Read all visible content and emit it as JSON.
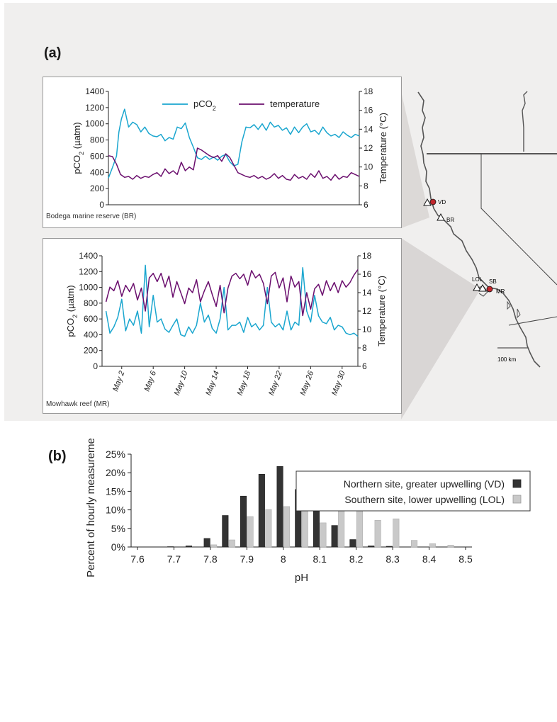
{
  "panel_a": {
    "label": "(a)",
    "legend": {
      "pco2": "pCO",
      "pco2_sub": "2",
      "temperature": "temperature"
    },
    "left_axis_label": "pCO",
    "left_axis_sub": "2",
    "left_axis_unit": " (µatm)",
    "right_axis_label": "Temperature (°C)",
    "colors": {
      "pco2": "#1aa6cf",
      "temperature": "#6b0f6e"
    },
    "map_scale_label": "100 km",
    "map_sites": [
      "VD",
      "BR",
      "LOL",
      "SB",
      "MR"
    ]
  },
  "chart_data": [
    {
      "type": "line",
      "title": "",
      "site_caption": "Bodega marine reserve (BR)",
      "ylabel": "pCO2 (µatm)",
      "y2label": "Temperature (°C)",
      "ylim": [
        0,
        1400
      ],
      "y2lim": [
        6,
        18
      ],
      "yticks": [
        "0",
        "200",
        "400",
        "600",
        "800",
        "1000",
        "1200",
        "1400"
      ],
      "y2ticks": [
        "6",
        "8",
        "10",
        "12",
        "14",
        "16",
        "18"
      ],
      "xlim_days": [
        1,
        32
      ],
      "series": [
        {
          "name": "pCO2",
          "axis": "left",
          "x": [
            1.0,
            1.5,
            2.0,
            2.3,
            2.6,
            3.0,
            3.5,
            4.0,
            4.5,
            5.0,
            5.5,
            6.0,
            6.5,
            7.0,
            7.5,
            8.0,
            8.5,
            9.0,
            9.5,
            10.0,
            10.5,
            11.0,
            11.5,
            12.0,
            12.5,
            13.0,
            13.5,
            14.0,
            14.5,
            15.0,
            15.5,
            16.0,
            16.5,
            17.0,
            17.5,
            18.0,
            18.5,
            19.0,
            19.5,
            20.0,
            20.5,
            21.0,
            21.5,
            22.0,
            22.5,
            23.0,
            23.5,
            24.0,
            24.5,
            25.0,
            25.5,
            26.0,
            26.5,
            27.0,
            27.5,
            28.0,
            28.5,
            29.0,
            29.5,
            30.0,
            30.5,
            31.0,
            31.5,
            32.0
          ],
          "y": [
            330,
            460,
            600,
            900,
            1060,
            1180,
            960,
            1020,
            990,
            900,
            960,
            880,
            850,
            840,
            870,
            790,
            830,
            810,
            960,
            940,
            1010,
            830,
            710,
            580,
            560,
            600,
            560,
            590,
            550,
            600,
            620,
            530,
            480,
            500,
            780,
            960,
            950,
            990,
            930,
            1000,
            920,
            1020,
            960,
            980,
            920,
            950,
            870,
            960,
            890,
            960,
            1000,
            900,
            920,
            870,
            960,
            890,
            850,
            870,
            830,
            900,
            860,
            830,
            870,
            850
          ]
        },
        {
          "name": "temperature",
          "axis": "right",
          "x": [
            1.0,
            1.5,
            2.0,
            2.5,
            3.0,
            3.5,
            4.0,
            4.5,
            5.0,
            5.5,
            6.0,
            6.5,
            7.0,
            7.5,
            8.0,
            8.5,
            9.0,
            9.5,
            10.0,
            10.5,
            11.0,
            11.5,
            12.0,
            12.5,
            13.0,
            13.5,
            14.0,
            14.5,
            15.0,
            15.5,
            16.0,
            16.5,
            17.0,
            17.5,
            18.0,
            18.5,
            19.0,
            19.5,
            20.0,
            20.5,
            21.0,
            21.5,
            22.0,
            22.5,
            23.0,
            23.5,
            24.0,
            24.5,
            25.0,
            25.5,
            26.0,
            26.5,
            27.0,
            27.5,
            28.0,
            28.5,
            29.0,
            29.5,
            30.0,
            30.5,
            31.0,
            31.5,
            32.0
          ],
          "y": [
            11.2,
            11.1,
            10.3,
            9.2,
            8.9,
            9.0,
            8.7,
            9.1,
            8.8,
            9.0,
            8.9,
            9.2,
            9.4,
            9.0,
            9.8,
            9.3,
            9.6,
            9.2,
            10.5,
            9.6,
            10.0,
            9.7,
            12.0,
            11.8,
            11.5,
            11.2,
            11.0,
            11.2,
            10.6,
            11.4,
            11.0,
            10.2,
            9.4,
            9.2,
            9.0,
            8.9,
            9.1,
            8.8,
            9.0,
            8.7,
            8.9,
            9.3,
            8.8,
            9.1,
            8.7,
            8.6,
            9.2,
            8.8,
            9.0,
            8.7,
            9.3,
            8.9,
            9.6,
            8.8,
            9.0,
            8.6,
            9.2,
            8.7,
            9.0,
            8.9,
            9.4,
            9.2,
            9.0
          ]
        }
      ]
    },
    {
      "type": "line",
      "title": "",
      "site_caption": "Mowhawk reef (MR)",
      "ylabel": "pCO2 (µatm)",
      "y2label": "Temperature (°C)",
      "ylim": [
        0,
        1400
      ],
      "y2lim": [
        6,
        18
      ],
      "yticks": [
        "0",
        "200",
        "400",
        "600",
        "800",
        "1000",
        "1200",
        "1400"
      ],
      "y2ticks": [
        "6",
        "8",
        "10",
        "12",
        "14",
        "16",
        "18"
      ],
      "xlim_days": [
        -0.5,
        32
      ],
      "xticks": [
        {
          "day": 2,
          "label": "May 2"
        },
        {
          "day": 6,
          "label": "May 6"
        },
        {
          "day": 10,
          "label": "May 10"
        },
        {
          "day": 14,
          "label": "May 14"
        },
        {
          "day": 18,
          "label": "May 18"
        },
        {
          "day": 22,
          "label": "May 22"
        },
        {
          "day": 26,
          "label": "May 26"
        },
        {
          "day": 30,
          "label": "May 30"
        }
      ],
      "series": [
        {
          "name": "pCO2",
          "axis": "left",
          "x": [
            0,
            0.5,
            1,
            1.5,
            2,
            2.5,
            3,
            3.5,
            4,
            4.5,
            5,
            5.5,
            6,
            6.5,
            7,
            7.5,
            8,
            8.5,
            9,
            9.5,
            10,
            10.5,
            11,
            11.5,
            12,
            12.5,
            13,
            13.5,
            14,
            14.5,
            15,
            15.5,
            16,
            16.5,
            17,
            17.5,
            18,
            18.5,
            19,
            19.5,
            20,
            20.5,
            21,
            21.5,
            22,
            22.5,
            23,
            23.5,
            24,
            24.5,
            25,
            25.5,
            26,
            26.5,
            27,
            27.5,
            28,
            28.5,
            29,
            29.5,
            30,
            30.5,
            31,
            31.5,
            32
          ],
          "y": [
            700,
            420,
            500,
            620,
            850,
            450,
            600,
            520,
            700,
            420,
            1280,
            500,
            900,
            560,
            600,
            470,
            430,
            520,
            600,
            400,
            380,
            500,
            420,
            520,
            800,
            560,
            650,
            480,
            420,
            600,
            1000,
            460,
            520,
            520,
            560,
            430,
            620,
            500,
            540,
            460,
            520,
            1000,
            560,
            500,
            540,
            460,
            700,
            460,
            560,
            520,
            1250,
            700,
            560,
            900,
            640,
            560,
            540,
            620,
            460,
            520,
            500,
            420,
            400,
            420,
            380
          ]
        },
        {
          "name": "temperature",
          "axis": "right",
          "x": [
            0,
            0.5,
            1,
            1.5,
            2,
            2.5,
            3,
            3.5,
            4,
            4.5,
            5,
            5.5,
            6,
            6.5,
            7,
            7.5,
            8,
            8.5,
            9,
            9.5,
            10,
            10.5,
            11,
            11.5,
            12,
            12.5,
            13,
            13.5,
            14,
            14.5,
            15,
            15.5,
            16,
            16.5,
            17,
            17.5,
            18,
            18.5,
            19,
            19.5,
            20,
            20.5,
            21,
            21.5,
            22,
            22.5,
            23,
            23.5,
            24,
            24.5,
            25,
            25.5,
            26,
            26.5,
            27,
            27.5,
            28,
            28.5,
            29,
            29.5,
            30,
            30.5,
            31,
            31.5,
            32
          ],
          "y": [
            13.0,
            14.6,
            14.2,
            15.3,
            13.6,
            14.8,
            14.1,
            15.0,
            13.2,
            14.5,
            12.0,
            15.6,
            16.1,
            15.2,
            16.1,
            14.6,
            15.8,
            13.5,
            15.2,
            14.0,
            12.8,
            14.5,
            14.0,
            15.4,
            13.0,
            14.2,
            15.2,
            13.8,
            12.5,
            14.8,
            11.8,
            14.5,
            15.8,
            16.1,
            15.5,
            16.0,
            14.8,
            16.4,
            15.6,
            16.0,
            15.0,
            12.8,
            15.8,
            16.2,
            14.5,
            15.6,
            13.0,
            15.8,
            14.6,
            15.2,
            11.5,
            14.0,
            12.2,
            14.4,
            14.9,
            13.7,
            15.3,
            14.2,
            15.1,
            14.0,
            15.3,
            14.6,
            15.1,
            15.9,
            16.5
          ]
        }
      ]
    },
    {
      "type": "bar",
      "title": "",
      "panel_label": "(b)",
      "xlabel": "pH",
      "ylabel": "Percent of hourly measurements",
      "ylim": [
        0,
        25
      ],
      "yticks": [
        "0%",
        "5%",
        "10%",
        "15%",
        "20%",
        "25%"
      ],
      "categories": [
        "7.6",
        "7.65",
        "7.7",
        "7.75",
        "7.8",
        "7.85",
        "7.9",
        "7.95",
        "8",
        "8.05",
        "8.1",
        "8.15",
        "8.2",
        "8.25",
        "8.3",
        "8.35",
        "8.4",
        "8.45",
        "8.5"
      ],
      "xtick_labels": [
        "7.6",
        "7.7",
        "7.8",
        "7.9",
        "8",
        "8.1",
        "8.2",
        "8.3",
        "8.4",
        "8.5"
      ],
      "legend_position": "top-right",
      "series": [
        {
          "name": "Northern site, greater upwelling (VD)",
          "color": "#333333",
          "values": [
            0,
            0,
            0.1,
            0.3,
            2.3,
            8.5,
            13.7,
            19.6,
            21.7,
            15.5,
            9.6,
            5.8,
            2.0,
            0.3,
            0.2,
            0,
            0,
            0,
            0
          ]
        },
        {
          "name": "Southern site, lower upwelling  (LOL)",
          "color": "#c9c9c9",
          "values": [
            0,
            0,
            0,
            0,
            0.6,
            1.9,
            8.2,
            10.1,
            10.9,
            13.4,
            6.5,
            15.8,
            14.3,
            7.2,
            7.6,
            1.8,
            0.9,
            0.5,
            0
          ]
        }
      ]
    }
  ]
}
